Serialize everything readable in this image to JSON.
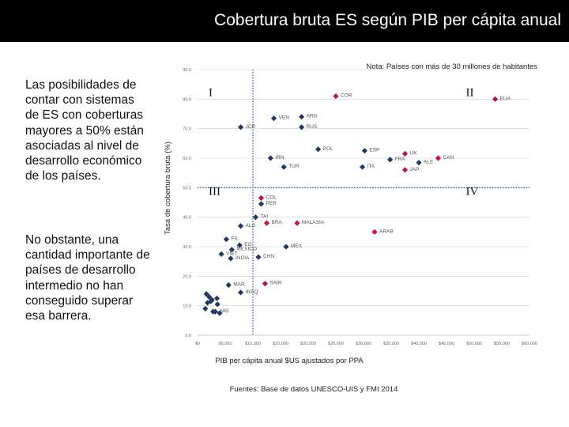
{
  "header": {
    "title": "Cobertura bruta ES según PIB per cápita anual"
  },
  "text": {
    "paragraph1": "Las posibilidades de contar con sistemas de ES con coberturas mayores a 50% están asociadas al nivel de desarrollo económico de los países.",
    "paragraph2": "No obstante, una cantidad importante de países de desarrollo intermedio no han conseguido superar esa barrera."
  },
  "notes": {
    "top": "Nota: Países con más de 30 millones de habitantes",
    "sources": "Fuentes: Base de datos UNESCO-UIS y FMI 2014"
  },
  "colors": {
    "blue": "#1f3864",
    "red": "#c0143c",
    "grid": "#d0d0d0",
    "divider": "#2e5fa8"
  },
  "chart_data": {
    "type": "scatter",
    "xlabel": "PIB per cápita anual $US ajustados por PPA",
    "ylabel": "Tasa de cobertura bruta (%)",
    "xlim": [
      0,
      60000
    ],
    "ylim": [
      0,
      90
    ],
    "x_ticks": [
      0,
      5000,
      10000,
      15000,
      20000,
      25000,
      30000,
      35000,
      40000,
      45000,
      50000,
      55000,
      60000
    ],
    "x_tick_labels": [
      "$0",
      "$5,000",
      "$10,000",
      "$15,000",
      "$20,000",
      "$25,000",
      "$30,000",
      "$35,000",
      "$40,000",
      "$45,000",
      "$50,000",
      "$55,000",
      "$60,000"
    ],
    "y_ticks": [
      0,
      10,
      20,
      30,
      40,
      50,
      60,
      70,
      80,
      90
    ],
    "y_tick_labels": [
      "0.0",
      "10.0",
      "20.0",
      "30.0",
      "40.0",
      "50.0",
      "60.0",
      "70.0",
      "80.0",
      "90.0"
    ],
    "grid": "horizontal",
    "dividers": {
      "x": 10000,
      "y": 50
    },
    "quadrants": [
      {
        "label": "I",
        "x": 2000,
        "y": 81
      },
      {
        "label": "II",
        "x": 48500,
        "y": 81
      },
      {
        "label": "III",
        "x": 2000,
        "y": 47.5
      },
      {
        "label": "IV",
        "x": 48500,
        "y": 47.5
      }
    ],
    "points": [
      {
        "label": "COR",
        "x": 25000,
        "y": 81,
        "color": "red"
      },
      {
        "label": "EUA",
        "x": 53800,
        "y": 80,
        "color": "red"
      },
      {
        "label": "VEN",
        "x": 13800,
        "y": 73.5,
        "color": "blue"
      },
      {
        "label": "ARG",
        "x": 18800,
        "y": 74,
        "color": "blue"
      },
      {
        "label": "RUS",
        "x": 18800,
        "y": 70.5,
        "color": "blue"
      },
      {
        "label": "JCR",
        "x": 7800,
        "y": 70.5,
        "color": "blue"
      },
      {
        "label": "POL",
        "x": 21800,
        "y": 63,
        "color": "blue"
      },
      {
        "label": "ESP",
        "x": 30200,
        "y": 62.5,
        "color": "blue"
      },
      {
        "label": "UK",
        "x": 37500,
        "y": 61.5,
        "color": "red"
      },
      {
        "label": "FRA",
        "x": 34800,
        "y": 59.5,
        "color": "blue"
      },
      {
        "label": "ALE",
        "x": 40000,
        "y": 58.5,
        "color": "blue"
      },
      {
        "label": "CAN",
        "x": 43500,
        "y": 60,
        "color": "red"
      },
      {
        "label": "IRN",
        "x": 13200,
        "y": 60,
        "color": "blue"
      },
      {
        "label": "TUR",
        "x": 15600,
        "y": 57,
        "color": "blue"
      },
      {
        "label": "ITA",
        "x": 29800,
        "y": 57,
        "color": "blue"
      },
      {
        "label": "JAP",
        "x": 37500,
        "y": 56,
        "color": "red"
      },
      {
        "label": "COL",
        "x": 11500,
        "y": 46.5,
        "color": "red"
      },
      {
        "label": "PER",
        "x": 11500,
        "y": 44.5,
        "color": "blue"
      },
      {
        "label": "TAI",
        "x": 10500,
        "y": 40,
        "color": "blue"
      },
      {
        "label": "BRA",
        "x": 12500,
        "y": 38,
        "color": "red"
      },
      {
        "label": "MALASIA",
        "x": 18000,
        "y": 38,
        "color": "red"
      },
      {
        "label": "ARAB",
        "x": 32000,
        "y": 35,
        "color": "red"
      },
      {
        "label": "ALG",
        "x": 7800,
        "y": 37,
        "color": "blue"
      },
      {
        "label": "FIL",
        "x": 5200,
        "y": 32.5,
        "color": "blue"
      },
      {
        "label": "EG",
        "x": 7600,
        "y": 30.5,
        "color": "blue"
      },
      {
        "label": "MEXICO",
        "x": 6200,
        "y": 29,
        "color": "blue"
      },
      {
        "label": "MEX",
        "x": 16000,
        "y": 30,
        "color": "blue"
      },
      {
        "label": "VIET",
        "x": 4300,
        "y": 27.5,
        "color": "blue"
      },
      {
        "label": "INDIA",
        "x": 6000,
        "y": 26,
        "color": "blue"
      },
      {
        "label": "CHN",
        "x": 11000,
        "y": 26.5,
        "color": "blue"
      },
      {
        "label": "SAIR",
        "x": 12200,
        "y": 17.5,
        "color": "red"
      },
      {
        "label": "MAR",
        "x": 5600,
        "y": 17,
        "color": "blue"
      },
      {
        "label": "IRAQ",
        "x": 7800,
        "y": 14.5,
        "color": "blue"
      },
      {
        "label": "NIG",
        "x": 3200,
        "y": 8,
        "color": "blue"
      },
      {
        "label": "",
        "x": 1600,
        "y": 14,
        "color": "blue"
      },
      {
        "label": "",
        "x": 2100,
        "y": 13,
        "color": "blue"
      },
      {
        "label": "",
        "x": 2400,
        "y": 11.5,
        "color": "blue"
      },
      {
        "label": "",
        "x": 1800,
        "y": 11,
        "color": "blue"
      },
      {
        "label": "",
        "x": 3500,
        "y": 12.5,
        "color": "blue"
      },
      {
        "label": "",
        "x": 3600,
        "y": 10.5,
        "color": "blue"
      },
      {
        "label": "",
        "x": 1400,
        "y": 9,
        "color": "blue"
      },
      {
        "label": "",
        "x": 2800,
        "y": 8,
        "color": "blue"
      },
      {
        "label": "",
        "x": 4000,
        "y": 7.5,
        "color": "blue"
      },
      {
        "label": "",
        "x": 2600,
        "y": 12,
        "color": "blue"
      }
    ]
  }
}
